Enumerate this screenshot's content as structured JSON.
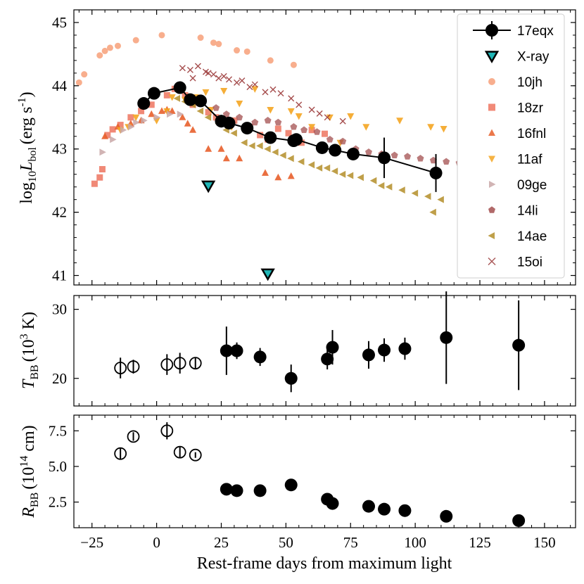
{
  "chart_data": {
    "type": "scatter",
    "xlabel": "Rest-frame days from maximum light",
    "xlim": [
      -32,
      162
    ],
    "xticks": [
      -25,
      0,
      25,
      50,
      75,
      100,
      125,
      150
    ],
    "xtick_labels": [
      "−25",
      "0",
      "25",
      "50",
      "75",
      "100",
      "125",
      "150"
    ],
    "colors": {
      "17eqx": "#000000",
      "xray_fill": "#1fb5b5",
      "10jh": "#f7a07a",
      "18zr": "#ee7560",
      "16fnl": "#e8602c",
      "11af": "#f5a623",
      "09ge": "#c9a7a7",
      "14li": "#a34f4f",
      "14ae": "#b48f2a",
      "15oi": "#9c3a3a"
    },
    "panels": [
      {
        "id": "luminosity",
        "ylabel_main": "log",
        "ylabel_sub1": "10",
        "ylabel_mid": "L",
        "ylabel_sub2": "bol",
        "ylabel_unit": "(erg s",
        "ylabel_sup": "-1",
        "ylabel_close": ")",
        "ylim": [
          40.85,
          45.2
        ],
        "yticks": [
          41,
          42,
          43,
          44,
          45
        ],
        "ytick_labels": [
          "41",
          "42",
          "43",
          "44",
          "45"
        ],
        "legend": [
          "17eqx",
          "X-ray",
          "10jh",
          "18zr",
          "16fnl",
          "11af",
          "09ge",
          "14li",
          "14ae",
          "15oi"
        ],
        "series": {
          "17eqx": {
            "x": [
              -5,
              -1,
              9,
              13,
              17,
              25,
              28,
              35,
              44,
              53,
              54,
              64,
              69,
              76,
              88,
              108
            ],
            "y": [
              43.72,
              43.88,
              43.97,
              43.78,
              43.76,
              43.44,
              43.41,
              43.33,
              43.18,
              43.13,
              43.15,
              43.02,
              42.98,
              42.92,
              42.86,
              42.62
            ],
            "yerr": [
              0.05,
              0.05,
              0.05,
              0.05,
              0.05,
              0.1,
              0.1,
              0.07,
              0.08,
              0.08,
              0.08,
              0.08,
              0.08,
              0.08,
              0.32,
              0.3
            ]
          },
          "xray": {
            "x": [
              20,
              43
            ],
            "y": [
              42.42,
              41.03
            ]
          },
          "10jh": {
            "x": [
              -30,
              -28,
              -22,
              -20,
              -18,
              -15,
              -8,
              2,
              17,
              22,
              24,
              31,
              35,
              44,
              53
            ],
            "y": [
              44.05,
              44.18,
              44.48,
              44.55,
              44.6,
              44.63,
              44.72,
              44.8,
              44.76,
              44.68,
              44.66,
              44.56,
              44.54,
              44.4,
              44.33
            ]
          },
          "18zr": {
            "x": [
              -24,
              -22,
              -21,
              -19,
              -17,
              -14,
              -10,
              -6,
              -2,
              4,
              7,
              11,
              14,
              20,
              23,
              27,
              30,
              36,
              40,
              43,
              47,
              51,
              56,
              60,
              65
            ],
            "y": [
              42.45,
              42.55,
              42.68,
              43.22,
              43.31,
              43.38,
              43.5,
              43.6,
              43.7,
              43.85,
              43.95,
              43.85,
              43.7,
              43.58,
              43.5,
              43.45,
              43.45,
              43.35,
              43.22,
              43.15,
              43.32,
              43.25,
              43.1,
              43.3,
              43.24
            ]
          },
          "16fnl": {
            "x": [
              -20,
              -15,
              -10,
              -6,
              -2,
              2,
              4,
              6,
              10,
              12,
              14,
              20,
              25,
              27,
              32,
              42,
              47,
              52
            ],
            "y": [
              43.2,
              43.35,
              43.4,
              43.45,
              43.55,
              43.6,
              43.62,
              43.6,
              43.5,
              43.4,
              43.3,
              43.0,
              43.0,
              42.85,
              42.85,
              42.62,
              42.55,
              42.57
            ]
          },
          "11af": {
            "x": [
              -14,
              -11,
              -8,
              0,
              4,
              6,
              11,
              15,
              19,
              21,
              26,
              29,
              32,
              38,
              44,
              52,
              55,
              60,
              67,
              71,
              75,
              81,
              94,
              106,
              111
            ],
            "y": [
              43.3,
              43.35,
              43.5,
              43.45,
              43.6,
              43.82,
              43.78,
              43.82,
              43.9,
              43.62,
              43.92,
              43.35,
              43.72,
              43.95,
              43.62,
              43.6,
              43.52,
              43.35,
              43.5,
              43.1,
              43.52,
              43.35,
              43.45,
              43.35,
              43.32
            ]
          },
          "09ge": {
            "x": [
              -21,
              -17,
              -13,
              -10,
              -8,
              -5,
              0,
              5,
              9
            ],
            "y": [
              42.95,
              43.15,
              43.3,
              43.35,
              43.42,
              43.45,
              43.5,
              43.55,
              43.55
            ]
          },
          "14li": {
            "x": [
              23,
              27,
              32,
              38,
              43,
              47,
              53,
              57,
              62,
              67,
              72,
              77,
              82,
              87,
              92,
              97,
              102,
              107,
              112,
              117,
              122,
              127
            ],
            "y": [
              43.65,
              43.55,
              43.5,
              43.42,
              43.45,
              43.42,
              43.35,
              43.3,
              43.27,
              43.15,
              43.12,
              43.0,
              42.95,
              42.92,
              42.9,
              42.88,
              42.85,
              42.82,
              42.8,
              42.78,
              42.8,
              42.75
            ]
          },
          "14ae": {
            "x": [
              8,
              11,
              14,
              17,
              20,
              24,
              27,
              30,
              34,
              37,
              40,
              43,
              46,
              49,
              52,
              56,
              60,
              63,
              66,
              69,
              72,
              75,
              79,
              84,
              87,
              90,
              95,
              100,
              105,
              107,
              110
            ],
            "y": [
              43.8,
              43.75,
              43.7,
              43.6,
              43.5,
              43.4,
              43.3,
              43.25,
              43.1,
              43.05,
              43.05,
              43.0,
              42.95,
              42.9,
              42.85,
              42.8,
              42.75,
              42.7,
              42.7,
              42.65,
              42.6,
              42.58,
              42.55,
              42.5,
              42.42,
              42.4,
              42.35,
              42.3,
              42.25,
              42.0,
              42.2
            ]
          },
          "15oi": {
            "x": [
              10,
              13,
              14,
              16,
              19,
              20,
              22,
              24,
              26,
              28,
              31,
              33,
              36,
              38,
              42,
              45,
              48,
              52,
              55,
              60,
              63,
              66,
              72
            ],
            "y": [
              44.28,
              44.25,
              44.12,
              44.31,
              44.22,
              44.2,
              44.18,
              44.12,
              44.15,
              44.1,
              44.05,
              44.08,
              43.98,
              44.02,
              43.9,
              43.94,
              43.88,
              43.8,
              43.7,
              43.62,
              43.56,
              43.5,
              43.44
            ]
          }
        }
      },
      {
        "id": "temperature",
        "ylabel_main": "T",
        "ylabel_sub1": "BB",
        "ylabel_unit": "(10",
        "ylabel_sup": "3",
        "ylabel_close": " K)",
        "ylim": [
          16,
          32
        ],
        "yticks": [
          20,
          30
        ],
        "ytick_labels": [
          "20",
          "30"
        ],
        "open": {
          "x": [
            -14,
            -9,
            4,
            9,
            15
          ],
          "y": [
            21.5,
            21.7,
            22.0,
            22.2,
            22.2
          ],
          "yerr": [
            1.5,
            1.0,
            1.5,
            1.5,
            0.8
          ]
        },
        "filled": {
          "x": [
            27,
            31,
            40,
            52,
            66,
            68,
            82,
            88,
            96,
            112,
            140
          ],
          "y": [
            24.0,
            24.0,
            23.1,
            20.0,
            22.8,
            24.5,
            23.4,
            24.1,
            24.3,
            25.9,
            24.8
          ],
          "yerr": [
            3.5,
            1.2,
            1.3,
            2.0,
            1.5,
            2.5,
            2.0,
            1.7,
            1.6,
            6.7,
            6.5
          ]
        }
      },
      {
        "id": "radius",
        "ylabel_main": "R",
        "ylabel_sub1": "BB",
        "ylabel_unit": "(10",
        "ylabel_sup": "14",
        "ylabel_close": " cm)",
        "ylim": [
          0.7,
          8.6
        ],
        "yticks": [
          2.5,
          5.0,
          7.5
        ],
        "ytick_labels": [
          "2.5",
          "5.0",
          "7.5"
        ],
        "open": {
          "x": [
            -14,
            -9,
            4,
            9,
            15
          ],
          "y": [
            5.9,
            7.1,
            7.5,
            6.0,
            5.8
          ],
          "yerr": [
            0.4,
            0.3,
            0.6,
            0.4,
            0.2
          ]
        },
        "filled": {
          "x": [
            27,
            31,
            40,
            52,
            66,
            68,
            82,
            88,
            96,
            112,
            140
          ],
          "y": [
            3.4,
            3.3,
            3.3,
            3.7,
            2.7,
            2.4,
            2.2,
            2.0,
            1.9,
            1.5,
            1.2
          ],
          "yerr": [
            0.2,
            0.2,
            0.2,
            0.4,
            0.3,
            0.2,
            0.2,
            0.2,
            0.2,
            0.15,
            0.1
          ]
        }
      }
    ]
  }
}
